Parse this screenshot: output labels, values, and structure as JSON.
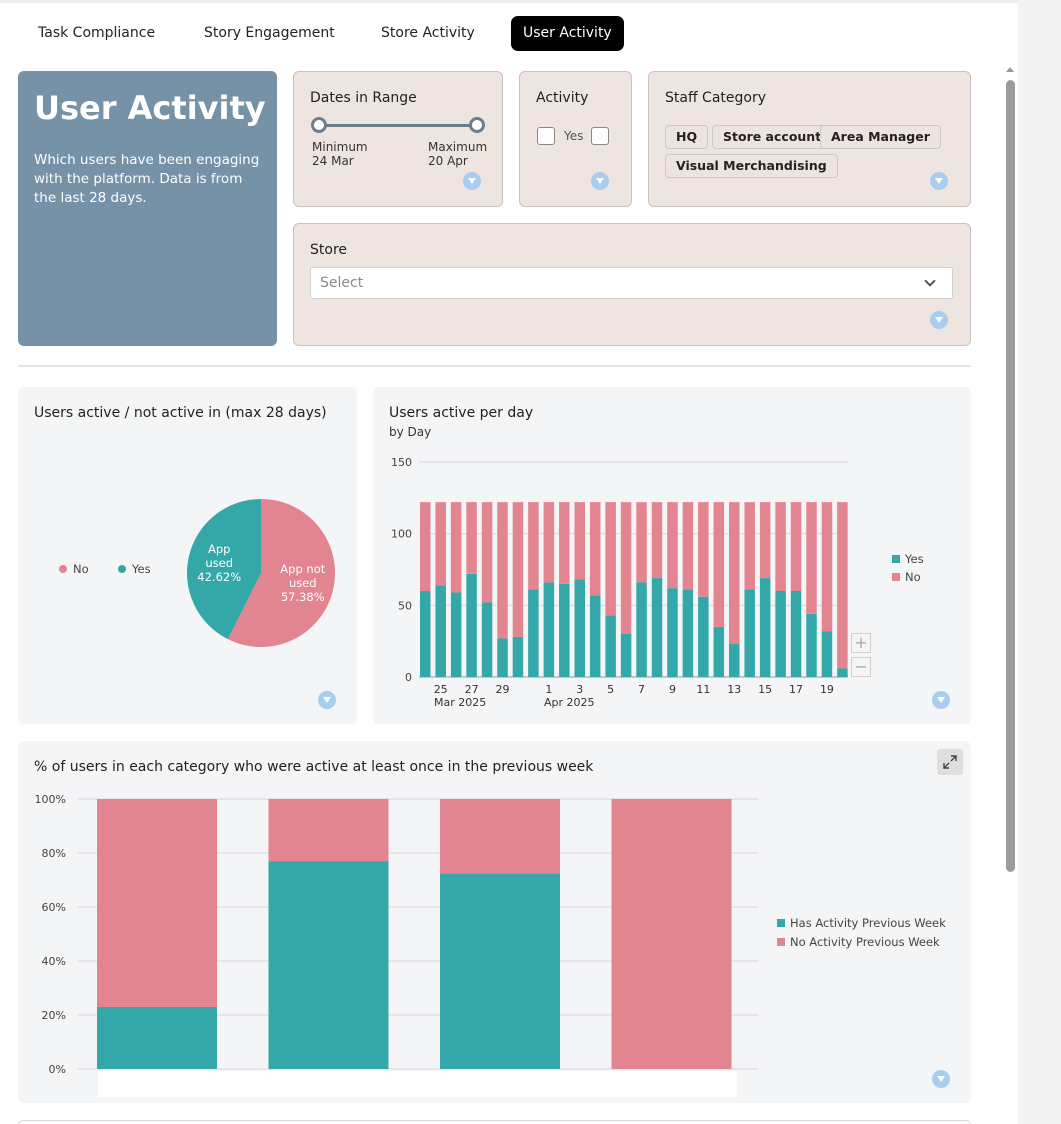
{
  "tabs": [
    {
      "label": "Task Compliance",
      "active": false
    },
    {
      "label": "Story Engagement",
      "active": false
    },
    {
      "label": "Store Activity",
      "active": false
    },
    {
      "label": "User Activity",
      "active": true
    }
  ],
  "hero": {
    "title": "User Activity",
    "description": "Which users have been engaging with the platform. Data is from the last 28 days."
  },
  "filters": {
    "dates": {
      "title": "Dates in Range",
      "min_label": "Minimum",
      "min_value": "24 Mar",
      "max_label": "Maximum",
      "max_value": "20 Apr"
    },
    "activity": {
      "title": "Activity",
      "option_label": "Yes"
    },
    "staff_category": {
      "title": "Staff Category",
      "chips": [
        "HQ",
        "Store account",
        "Area Manager",
        "Visual Merchandising"
      ]
    },
    "store": {
      "title": "Store",
      "placeholder": "Select"
    }
  },
  "colors": {
    "teal": "#34a8a8",
    "pink": "#e38591",
    "hero": "#7592a7",
    "filter_bg": "#eee5e0"
  },
  "icons": {
    "filter": "funnel-icon",
    "expand": "expand-icon",
    "dropdown": "chevron-down-icon"
  },
  "chart_data": [
    {
      "type": "pie",
      "title": "Users active / not active in (max 28 days)",
      "legend": [
        "No",
        "Yes"
      ],
      "slices": [
        {
          "name": "No",
          "label": "App not used",
          "value": 57.38,
          "display": "57.38%",
          "color": "#e38591"
        },
        {
          "name": "Yes",
          "label": "App used",
          "value": 42.62,
          "display": "42.62%",
          "color": "#34a8a8"
        }
      ]
    },
    {
      "type": "bar",
      "stacked": true,
      "title": "Users active per day",
      "subtitle": "by Day",
      "ylim": [
        0,
        150
      ],
      "yticks": [
        0,
        50,
        100,
        150
      ],
      "x_tick_labels": [
        "25",
        "27",
        "29",
        "1",
        "3",
        "5",
        "7",
        "9",
        "11",
        "13",
        "15",
        "17",
        "19"
      ],
      "x_group_labels": [
        "Mar 2025",
        "Apr 2025"
      ],
      "total_per_day": 122,
      "series": [
        {
          "name": "Yes",
          "color": "#34a8a8",
          "values": [
            60,
            64,
            59,
            72,
            52,
            27,
            28,
            61,
            66,
            65,
            68,
            57,
            43,
            30,
            66,
            69,
            62,
            61,
            56,
            35,
            23,
            61,
            69,
            60,
            60,
            44,
            32,
            6
          ]
        },
        {
          "name": "No",
          "color": "#e38591",
          "values": [
            62,
            58,
            63,
            50,
            70,
            95,
            94,
            61,
            56,
            57,
            54,
            65,
            79,
            92,
            56,
            53,
            60,
            61,
            66,
            87,
            99,
            61,
            53,
            62,
            62,
            78,
            90,
            116
          ]
        }
      ]
    },
    {
      "type": "bar",
      "stacked": true,
      "title": "% of users in each category who were active at least once in the previous week",
      "ylim": [
        0,
        100
      ],
      "yticks": [
        "0%",
        "20%",
        "40%",
        "60%",
        "80%",
        "100%"
      ],
      "categories": [
        "",
        "",
        "",
        ""
      ],
      "series": [
        {
          "name": "Has Activity Previous Week",
          "color": "#34a8a8",
          "values": [
            23,
            77,
            72.5,
            0
          ]
        },
        {
          "name": "No Activity Previous Week",
          "color": "#e38591",
          "values": [
            77,
            23,
            27.5,
            100
          ]
        }
      ]
    }
  ]
}
